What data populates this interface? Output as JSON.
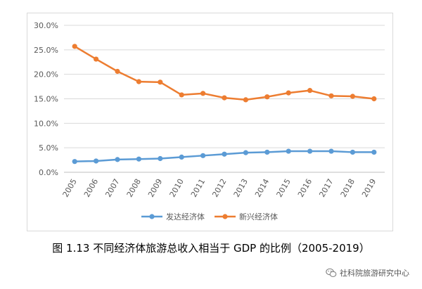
{
  "chart_data": {
    "type": "line",
    "title": "",
    "xlabel": "",
    "ylabel": "",
    "categories": [
      "2005",
      "2006",
      "2007",
      "2008",
      "2009",
      "2010",
      "2011",
      "2012",
      "2013",
      "2014",
      "2015",
      "2016",
      "2017",
      "2018",
      "2019"
    ],
    "ylim": [
      0,
      30
    ],
    "y_ticks": [
      "0.0%",
      "5.0%",
      "10.0%",
      "15.0%",
      "20.0%",
      "25.0%",
      "30.0%"
    ],
    "grid": true,
    "legend_position": "bottom",
    "series": [
      {
        "name": "发达经济体",
        "color": "#5b9bd5",
        "values": [
          2.2,
          2.3,
          2.6,
          2.7,
          2.8,
          3.1,
          3.4,
          3.7,
          4.0,
          4.1,
          4.3,
          4.3,
          4.3,
          4.1,
          4.1
        ]
      },
      {
        "name": "新兴经济体",
        "color": "#ed7d31",
        "values": [
          25.7,
          23.1,
          20.6,
          18.5,
          18.4,
          15.8,
          16.1,
          15.2,
          14.8,
          15.4,
          16.2,
          16.7,
          15.6,
          15.5,
          15.0
        ]
      }
    ]
  },
  "caption": "图 1.13 不同经济体旅游总收入相当于 GDP 的比例（2005-2019）",
  "watermark": "社科院旅游研究中心"
}
